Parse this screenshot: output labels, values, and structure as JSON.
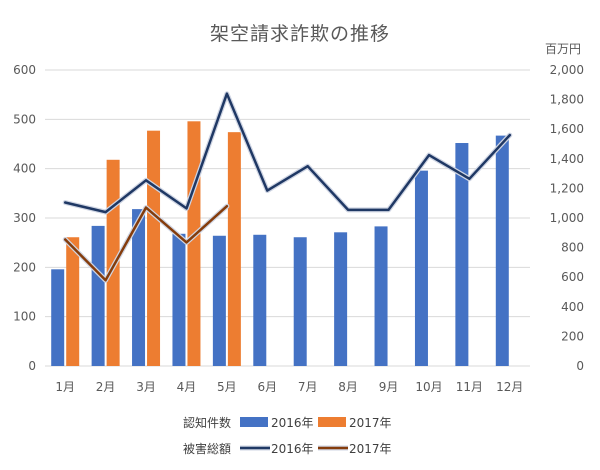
{
  "chart_data": {
    "type": "bar",
    "title": "架空請求詐欺の推移",
    "categories": [
      "1月",
      "2月",
      "3月",
      "4月",
      "5月",
      "6月",
      "7月",
      "8月",
      "9月",
      "10月",
      "11月",
      "12月"
    ],
    "left_axis": {
      "range": [
        0,
        600
      ],
      "ticks": [
        "0",
        "100",
        "200",
        "300",
        "400",
        "500",
        "600"
      ]
    },
    "right_axis": {
      "unit": "百万円",
      "range": [
        0,
        2000
      ],
      "ticks": [
        "0",
        "200",
        "400",
        "600",
        "800",
        "1,000",
        "1,200",
        "1,400",
        "1,600",
        "1,800",
        "2,000"
      ]
    },
    "grid": true,
    "series": [
      {
        "name": "2016年",
        "group": "認知件数",
        "kind": "bar",
        "axis": "left",
        "color": "#4472C4",
        "values": [
          196,
          284,
          318,
          268,
          264,
          266,
          261,
          271,
          283,
          396,
          452,
          467
        ]
      },
      {
        "name": "2017年",
        "group": "認知件数",
        "kind": "bar",
        "axis": "left",
        "color": "#ED7D31",
        "values": [
          261,
          418,
          477,
          496,
          474,
          null,
          null,
          null,
          null,
          null,
          null,
          null
        ]
      },
      {
        "name": "2016年",
        "group": "被害総額",
        "kind": "line",
        "axis": "right",
        "color": "#1F3864",
        "values": [
          1105,
          1040,
          1255,
          1065,
          1840,
          1185,
          1350,
          1055,
          1055,
          1425,
          1265,
          1560
        ]
      },
      {
        "name": "2017年",
        "group": "被害総額",
        "kind": "line",
        "axis": "right",
        "color": "#843C0C",
        "values": [
          855,
          580,
          1070,
          835,
          1080,
          null,
          null,
          null,
          null,
          null,
          null,
          null
        ]
      }
    ],
    "legend": {
      "position": "bottom",
      "rows": [
        {
          "label": "認知件数",
          "items": [
            "2016年",
            "2017年"
          ]
        },
        {
          "label": "被害総額",
          "items": [
            "2016年",
            "2017年"
          ]
        }
      ]
    }
  }
}
